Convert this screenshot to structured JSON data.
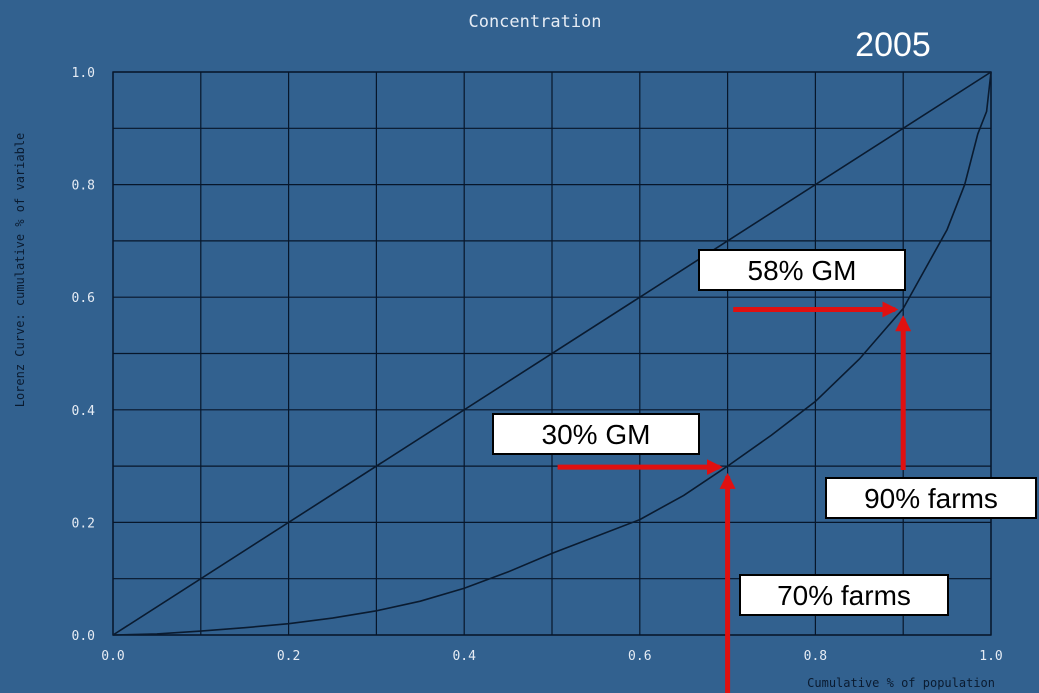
{
  "chart_data": {
    "type": "line",
    "title": "Concentration",
    "subtitle": "2005",
    "xlabel": "Cumulative % of population",
    "ylabel": "Lorenz Curve: cumulative % of variable",
    "xlim": [
      0.0,
      1.0
    ],
    "ylim": [
      0.0,
      1.0
    ],
    "grid": true,
    "x_ticks": [
      "0.0",
      "0.2",
      "0.4",
      "0.6",
      "0.8",
      "1.0"
    ],
    "y_ticks": [
      "0.0",
      "0.2",
      "0.4",
      "0.6",
      "0.8",
      "1.0"
    ],
    "series": [
      {
        "x": [
          0.0,
          1.0
        ],
        "y": [
          0.0,
          1.0
        ]
      },
      {
        "x": [
          0.0,
          0.05,
          0.1,
          0.15,
          0.2,
          0.25,
          0.3,
          0.35,
          0.4,
          0.45,
          0.5,
          0.55,
          0.6,
          0.65,
          0.7,
          0.75,
          0.8,
          0.85,
          0.9,
          0.95,
          0.97,
          0.985,
          0.995,
          1.0
        ],
        "y": [
          0.0,
          0.002,
          0.007,
          0.013,
          0.02,
          0.03,
          0.043,
          0.06,
          0.083,
          0.112,
          0.145,
          0.175,
          0.205,
          0.248,
          0.3,
          0.355,
          0.415,
          0.49,
          0.58,
          0.72,
          0.8,
          0.89,
          0.93,
          1.0
        ]
      }
    ],
    "annotations": [
      {
        "text": "58% GM",
        "x": 0.9,
        "y": 0.58
      },
      {
        "text": "90% farms",
        "x": 0.9,
        "y": 0.58
      },
      {
        "text": "30% GM",
        "x": 0.7,
        "y": 0.3
      },
      {
        "text": "70% farms",
        "x": 0.7,
        "y": 0.3
      }
    ]
  },
  "colors": {
    "background": "#32618f",
    "grid": "#07162a",
    "curve": "#0a1b30",
    "text": "#e6ecf4",
    "arrow": "#e01010",
    "label_box": "#ffffff",
    "label_text": "#000000"
  }
}
